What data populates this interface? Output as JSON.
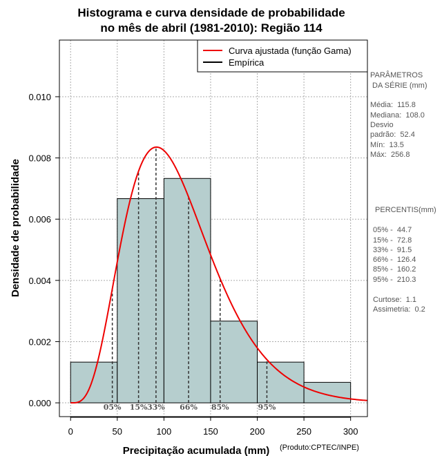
{
  "chart_data": {
    "type": "bar",
    "title_lines": [
      "Histograma e curva densidade de probabilidade",
      "no mês de abril (1981-2010): Região 114"
    ],
    "xlabel": "Precipitação acumulada (mm)",
    "ylabel": "Densidade de probabilidade",
    "credit": "(Produto:CPTEC/INPE)",
    "xlim": [
      -12,
      318
    ],
    "ylim": [
      -0.00045,
      0.01185
    ],
    "x_ticks": [
      0,
      50,
      100,
      150,
      200,
      250,
      300
    ],
    "y_ticks": [
      0.0,
      0.002,
      0.004,
      0.006,
      0.008,
      0.01
    ],
    "y_tick_labels": [
      "0.000",
      "0.002",
      "0.004",
      "0.006",
      "0.008",
      "0.010"
    ],
    "grid": true,
    "histogram": {
      "name": "Empírica",
      "bins": [
        {
          "from": 0,
          "to": 50,
          "density": 0.00133
        },
        {
          "from": 50,
          "to": 100,
          "density": 0.00667
        },
        {
          "from": 100,
          "to": 150,
          "density": 0.00733
        },
        {
          "from": 150,
          "to": 200,
          "density": 0.00267
        },
        {
          "from": 200,
          "to": 250,
          "density": 0.00133
        },
        {
          "from": 250,
          "to": 300,
          "density": 0.00067
        }
      ],
      "fill": "#b6cece"
    },
    "curve": {
      "name": "Curva ajustada (função Gama)",
      "distribution": "gamma",
      "shape": 4.88,
      "scale": 23.73,
      "x_range": [
        0,
        318
      ],
      "color": "#ee0000"
    },
    "percentile_markers": [
      {
        "label": "05%",
        "value": 44.7
      },
      {
        "label": "15%",
        "value": 72.8
      },
      {
        "label": "33%",
        "value": 91.5
      },
      {
        "label": "66%",
        "value": 126.4
      },
      {
        "label": "85%",
        "value": 160.2
      },
      {
        "label": "95%",
        "value": 210.3
      }
    ],
    "legend": {
      "position": "top-right",
      "entries": [
        {
          "label": "Curva ajustada (função Gama)",
          "color": "#ee0000"
        },
        {
          "label": "Empírica",
          "color": "#000000"
        }
      ]
    }
  },
  "side_panel": {
    "params_lines": [
      "PARÂMETROS",
      " DA SÉRIE (mm)",
      "",
      "Média:  115.8",
      "Mediana:  108.0",
      "Desvio",
      "padrão:  52.4",
      "Mín:  13.5",
      "Máx:  256.8"
    ],
    "percentis_lines": [
      " PERCENTIS(mm)",
      "",
      "05% -  44.7",
      "15% -  72.8",
      "33% -  91.5",
      "66% -  126.4",
      "85% -  160.2",
      "95% -  210.3",
      "",
      "Curtose:  1.1",
      "Assimetria:  0.2"
    ]
  }
}
